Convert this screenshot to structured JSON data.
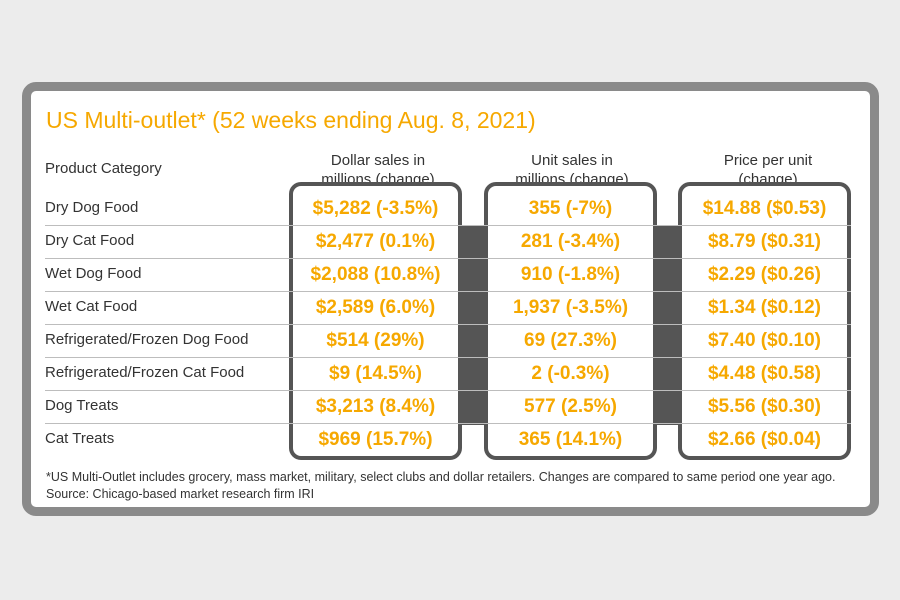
{
  "chart_data": {
    "type": "table",
    "title": "US Multi-outlet* (52 weeks ending Aug. 8, 2021)",
    "columns": [
      "Product Category",
      "Dollar sales in millions (change)",
      "Unit sales in millions (change)",
      "Price per unit (change)"
    ],
    "rows": [
      {
        "category": "Dry Dog Food",
        "dollar": "$5,282 (-3.5%)",
        "unit": "355 (-7%)",
        "price": "$14.88 ($0.53)"
      },
      {
        "category": "Dry Cat Food",
        "dollar": "$2,477 (0.1%)",
        "unit": "281 (-3.4%)",
        "price": "$8.79 ($0.31)"
      },
      {
        "category": "Wet Dog Food",
        "dollar": "$2,088 (10.8%)",
        "unit": "910 (-1.8%)",
        "price": "$2.29 ($0.26)"
      },
      {
        "category": "Wet Cat Food",
        "dollar": "$2,589 (6.0%)",
        "unit": "1,937 (-3.5%)",
        "price": "$1.34 ($0.12)"
      },
      {
        "category": "Refrigerated/Frozen Dog Food",
        "dollar": "$514 (29%)",
        "unit": "69 (27.3%)",
        "price": "$7.40 ($0.10)"
      },
      {
        "category": "Refrigerated/Frozen Cat Food",
        "dollar": "$9 (14.5%)",
        "unit": "2 (-0.3%)",
        "price": "$4.48 ($0.58)"
      },
      {
        "category": "Dog Treats",
        "dollar": "$3,213 (8.4%)",
        "unit": "577 (2.5%)",
        "price": "$5.56 ($0.30)"
      },
      {
        "category": "Cat Treats",
        "dollar": "$969 (15.7%)",
        "unit": "365 (14.1%)",
        "price": "$2.66 ($0.04)"
      }
    ]
  },
  "headers": {
    "category": "Product Category",
    "dollar": [
      "Dollar sales in",
      "millions (change)"
    ],
    "unit": [
      "Unit sales in",
      "millions (change)"
    ],
    "price": [
      "Price per unit",
      "(change)"
    ]
  },
  "footnote": "*US Multi-Outlet includes grocery, mass market, military, select clubs and dollar retailers. Changes are compared to same period one year ago.",
  "source": "Source: Chicago-based market research firm IRI",
  "colors": {
    "accent": "#f6a800",
    "frame": "#8a8a8a",
    "column_border": "#555555",
    "background": "#ececec"
  }
}
